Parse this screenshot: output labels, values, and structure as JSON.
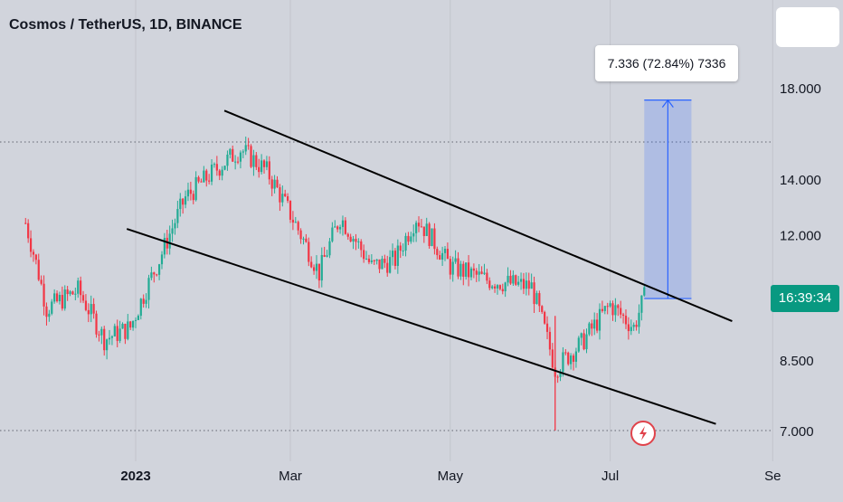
{
  "header": {
    "title": "Cosmos / TetherUS, 1D, BINANCE"
  },
  "measure": {
    "label": "7.336 (72.84%) 7336"
  },
  "price_badge": {
    "text": "16:39:34"
  },
  "colors": {
    "background": "#d1d4dc",
    "up": "#22ab94",
    "down": "#f23645",
    "badge": "#089981",
    "measure_fill": "#2962ff",
    "trendline": "#000000",
    "alert_icon": "#e0434b"
  },
  "icons": [
    "lightning-alert-icon"
  ],
  "chart_data": {
    "type": "candlestick",
    "scale": "log",
    "title": "Cosmos / TetherUS, 1D, BINANCE",
    "xlabel": "",
    "ylabel": "",
    "x_tick_labels": [
      "2023",
      "Mar",
      "May",
      "Jul",
      "Se"
    ],
    "y_tick_labels": [
      "18.000",
      "14.000",
      "12.000",
      "8.500",
      "7.000"
    ],
    "ylim": [
      6.8,
      22
    ],
    "grid": false,
    "horizontal_levels": [
      15.5,
      7.0
    ],
    "approx_close_path": [
      {
        "date": "2022-11-20",
        "close": 12.4
      },
      {
        "date": "2022-11-28",
        "close": 9.8
      },
      {
        "date": "2022-12-10",
        "close": 10.3
      },
      {
        "date": "2022-12-20",
        "close": 9.0
      },
      {
        "date": "2022-12-30",
        "close": 9.3
      },
      {
        "date": "2023-01-10",
        "close": 11.2
      },
      {
        "date": "2023-01-20",
        "close": 13.3
      },
      {
        "date": "2023-02-01",
        "close": 14.4
      },
      {
        "date": "2023-02-10",
        "close": 15.2
      },
      {
        "date": "2023-02-20",
        "close": 14.3
      },
      {
        "date": "2023-03-05",
        "close": 12.0
      },
      {
        "date": "2023-03-12",
        "close": 10.8
      },
      {
        "date": "2023-03-20",
        "close": 12.6
      },
      {
        "date": "2023-04-01",
        "close": 11.0
      },
      {
        "date": "2023-04-10",
        "close": 11.2
      },
      {
        "date": "2023-04-18",
        "close": 12.6
      },
      {
        "date": "2023-05-01",
        "close": 11.0
      },
      {
        "date": "2023-05-15",
        "close": 10.6
      },
      {
        "date": "2023-06-01",
        "close": 10.4
      },
      {
        "date": "2023-06-10",
        "close": 8.3
      },
      {
        "date": "2023-06-20",
        "close": 8.9
      },
      {
        "date": "2023-07-01",
        "close": 9.9
      },
      {
        "date": "2023-07-10",
        "close": 9.3
      },
      {
        "date": "2023-07-14",
        "close": 10.1
      }
    ],
    "channel_upper": {
      "start": {
        "date": "2023-01-20",
        "price": 16.9
      },
      "end": {
        "date": "2023-08-01",
        "price": 9.7
      }
    },
    "channel_lower": {
      "start": {
        "date": "2022-12-20",
        "price": 12.2
      },
      "end": {
        "date": "2023-08-01",
        "price": 7.4
      }
    },
    "measure_range": {
      "from_price": 10.07,
      "to_price": 17.4,
      "change": 7.336,
      "change_pct": 72.84
    }
  }
}
